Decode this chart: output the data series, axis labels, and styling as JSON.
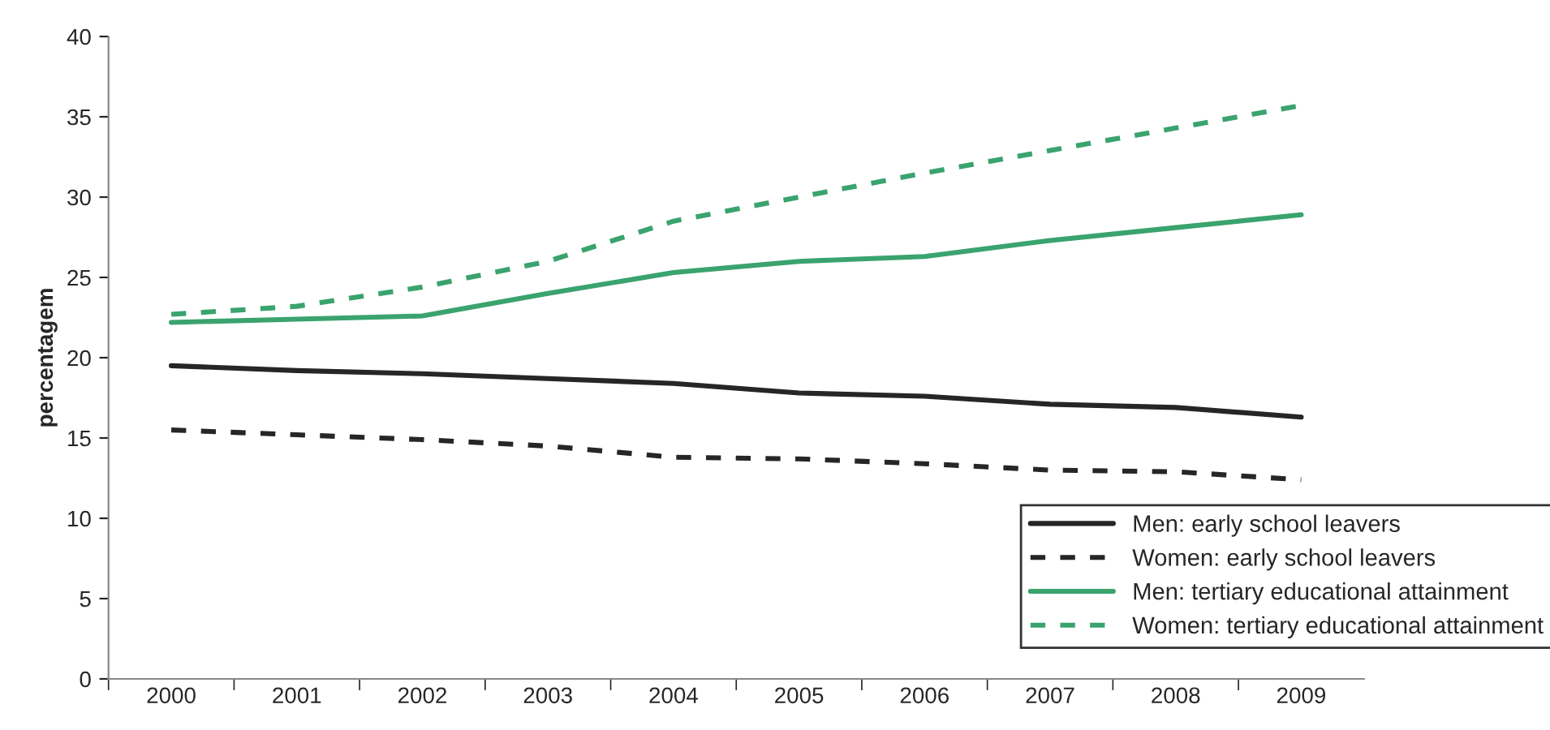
{
  "chart_data": {
    "type": "line",
    "ylabel": "percentagem",
    "categories": [
      "2000",
      "2001",
      "2002",
      "2003",
      "2004",
      "2005",
      "2006",
      "2007",
      "2008",
      "2009"
    ],
    "ylim": [
      0,
      40
    ],
    "yticks": [
      0,
      5,
      10,
      15,
      20,
      25,
      30,
      35,
      40
    ],
    "grid": false,
    "legend": "bottom right",
    "marker": "none",
    "series": [
      {
        "name": "Men: early school leavers",
        "color": "#262626",
        "line_style": "solid",
        "values": [
          19.5,
          19.2,
          19.0,
          18.7,
          18.4,
          17.8,
          17.6,
          17.1,
          16.9,
          16.3
        ]
      },
      {
        "name": "Women: early school leavers",
        "color": "#262626",
        "line_style": "dashed",
        "values": [
          15.5,
          15.2,
          14.9,
          14.5,
          13.8,
          13.7,
          13.4,
          13.0,
          12.9,
          12.4
        ]
      },
      {
        "name": "Men: tertiary educational attainment",
        "color": "#3aa36e",
        "line_style": "solid",
        "values": [
          22.2,
          22.4,
          22.6,
          24.0,
          25.3,
          26.0,
          26.3,
          27.3,
          28.1,
          28.9
        ]
      },
      {
        "name": "Women: tertiary educational attainment",
        "color": "#3aa36e",
        "line_style": "dashed",
        "values": [
          22.7,
          23.2,
          24.4,
          26.0,
          28.5,
          30.0,
          31.5,
          32.9,
          34.3,
          35.7
        ]
      }
    ]
  }
}
